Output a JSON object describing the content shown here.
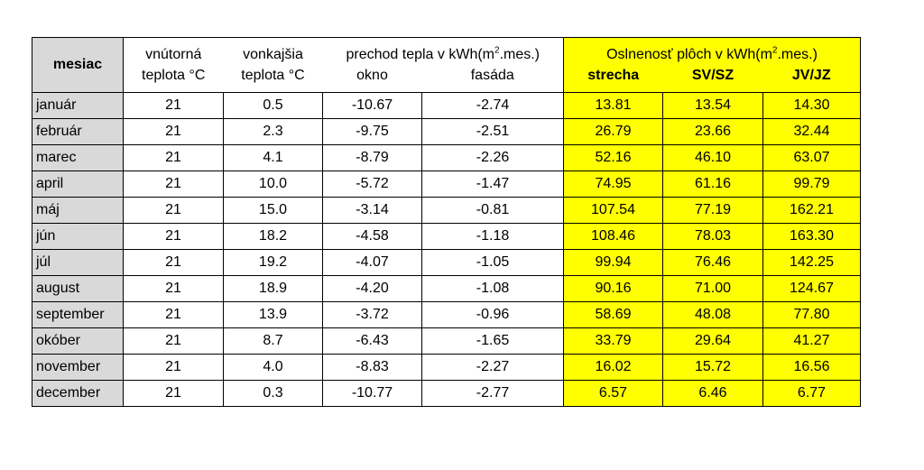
{
  "header": {
    "mesiac": "mesiac",
    "inner_temp_1": "vnútorná",
    "inner_temp_2": "teplota °C",
    "outer_temp_1": "vonkajšia",
    "outer_temp_2": "teplota °C",
    "heat_transfer_pre": "prechod tepla v kWh(m",
    "heat_transfer_sup": "2",
    "heat_transfer_post": ".mes.)",
    "okno": "okno",
    "fasada": "fasáda",
    "solar_pre": "Oslnenosť plôch v kWh(m",
    "solar_sup": "2",
    "solar_post": ".mes.)",
    "strecha": "strecha",
    "svsz": "SV/SZ",
    "jvjz": "JV/JZ"
  },
  "rows": [
    {
      "mesiac": "január",
      "in": "21",
      "out": "0.5",
      "okno": "-10.67",
      "fasada": "-2.74",
      "strecha": "13.81",
      "svsz": "13.54",
      "jvjz": "14.30"
    },
    {
      "mesiac": "február",
      "in": "21",
      "out": "2.3",
      "okno": "-9.75",
      "fasada": "-2.51",
      "strecha": "26.79",
      "svsz": "23.66",
      "jvjz": "32.44"
    },
    {
      "mesiac": "marec",
      "in": "21",
      "out": "4.1",
      "okno": "-8.79",
      "fasada": "-2.26",
      "strecha": "52.16",
      "svsz": "46.10",
      "jvjz": "63.07"
    },
    {
      "mesiac": "april",
      "in": "21",
      "out": "10.0",
      "okno": "-5.72",
      "fasada": "-1.47",
      "strecha": "74.95",
      "svsz": "61.16",
      "jvjz": "99.79"
    },
    {
      "mesiac": "máj",
      "in": "21",
      "out": "15.0",
      "okno": "-3.14",
      "fasada": "-0.81",
      "strecha": "107.54",
      "svsz": "77.19",
      "jvjz": "162.21"
    },
    {
      "mesiac": "jún",
      "in": "21",
      "out": "18.2",
      "okno": "-4.58",
      "fasada": "-1.18",
      "strecha": "108.46",
      "svsz": "78.03",
      "jvjz": "163.30"
    },
    {
      "mesiac": "júl",
      "in": "21",
      "out": "19.2",
      "okno": "-4.07",
      "fasada": "-1.05",
      "strecha": "99.94",
      "svsz": "76.46",
      "jvjz": "142.25"
    },
    {
      "mesiac": "august",
      "in": "21",
      "out": "18.9",
      "okno": "-4.20",
      "fasada": "-1.08",
      "strecha": "90.16",
      "svsz": "71.00",
      "jvjz": "124.67"
    },
    {
      "mesiac": "september",
      "in": "21",
      "out": "13.9",
      "okno": "-3.72",
      "fasada": "-0.96",
      "strecha": "58.69",
      "svsz": "48.08",
      "jvjz": "77.80"
    },
    {
      "mesiac": "okóber",
      "in": "21",
      "out": "8.7",
      "okno": "-6.43",
      "fasada": "-1.65",
      "strecha": "33.79",
      "svsz": "29.64",
      "jvjz": "41.27"
    },
    {
      "mesiac": "november",
      "in": "21",
      "out": "4.0",
      "okno": "-8.83",
      "fasada": "-2.27",
      "strecha": "16.02",
      "svsz": "15.72",
      "jvjz": "16.56"
    },
    {
      "mesiac": "december",
      "in": "21",
      "out": "0.3",
      "okno": "-10.77",
      "fasada": "-2.77",
      "strecha": "6.57",
      "svsz": "6.46",
      "jvjz": "6.77"
    }
  ],
  "colors": {
    "header_gray": "#d9d9d9",
    "solar_yellow": "#ffff00",
    "border": "#000000"
  }
}
